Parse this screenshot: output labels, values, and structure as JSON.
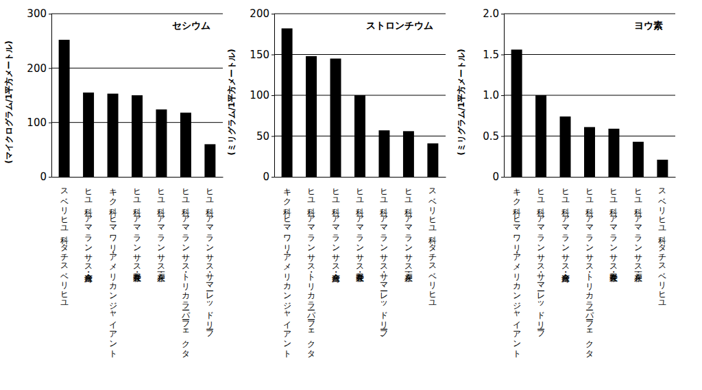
{
  "chart_data": [
    {
      "type": "bar",
      "title": "セシウム",
      "y_label": "(マイクログラム/1平方メートル)",
      "categories": [
        "スベリヒユ科　タチスベリヒユ",
        "ヒユ科　アマランサス・台湾在来",
        "キク科　ヒマワリ・アメリカンジャイアント",
        "ヒユ科　アマランサス・長野在来",
        "ヒユ科　アマランサス・一戸在来",
        "ヒユ科　アマランサス・トリカラーパーフェクタ",
        "ヒユ科　アマランサス・サマーレッドリーフ"
      ],
      "values": [
        252,
        155,
        153,
        150,
        124,
        118,
        60
      ],
      "color": "#000000",
      "ylim": [
        0,
        300
      ],
      "yticks": [
        0,
        100,
        200,
        300
      ],
      "grid": true
    },
    {
      "type": "bar",
      "title": "ストロンチウム",
      "y_label": "(ミリグラム/1平方メートル)",
      "categories": [
        "キク科　ヒマワリ・アメリカンジャイアント",
        "ヒユ科　アマランサス・トリカラーパーフェクタ",
        "ヒユ科　アマランサス・台湾在来",
        "ヒユ科　アマランサス・長野在来",
        "ヒユ科　アマランサス・サマーレッドリーフ,",
        "ヒユ科　アマランサス・一戸在来",
        "スベリヒユ科　タチスベリヒユ"
      ],
      "values": [
        182,
        148,
        145,
        100,
        57,
        56,
        41
      ],
      "color": "#000000",
      "ylim": [
        0,
        200
      ],
      "yticks": [
        0,
        50,
        100,
        150,
        200
      ],
      "grid": true
    },
    {
      "type": "bar",
      "title": "ヨウ素",
      "y_label": "(ミリグラム/1平方メートル)",
      "categories": [
        "キク科　ヒマワリ・アメリカンジャイアント",
        "ヒユ科　アマランサス・サマーレッドリーフ",
        "ヒユ科　アマランサス・台湾在来",
        "ヒユ科　アマランサス・トリカラーパーフェクタ",
        "ヒユ科　アマランサス・長野在来",
        "ヒユ科　アマランサス・一戸在来",
        "スベリヒユ科　タチスベリヒユ"
      ],
      "values": [
        1.56,
        1.0,
        0.74,
        0.61,
        0.59,
        0.43,
        0.21
      ],
      "color": "#000000",
      "ylim": [
        0,
        2.0
      ],
      "yticks": [
        0,
        0.5,
        {
          "value": 1.0,
          "label": "1.0"
        },
        1.5,
        {
          "value": 2.0,
          "label": "2.0"
        }
      ],
      "grid": true
    }
  ]
}
